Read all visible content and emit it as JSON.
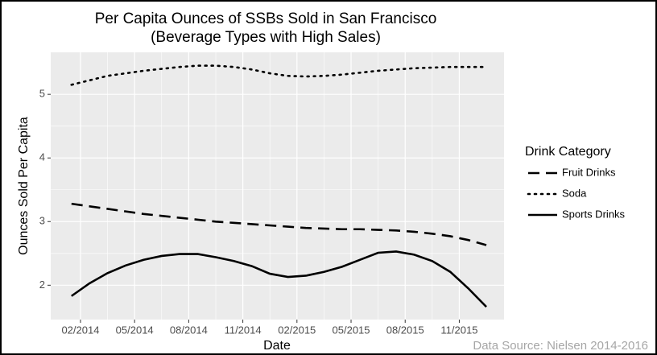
{
  "chart_data": {
    "type": "line",
    "title": "Per Capita Ounces of SSBs Sold in San Francisco",
    "subtitle": "(Beverage Types with High Sales)",
    "x_label": "Date",
    "y_label": "Ounces Sold Per Capita",
    "caption": "Data Source: Nielsen 2014-2016",
    "legend_title": "Drink Category",
    "legend": "right",
    "grid": true,
    "x": [
      1.5,
      2.5,
      3.5,
      4.5,
      5.5,
      6.5,
      7.5,
      8.5,
      9.5,
      10.5,
      11.5,
      12.5,
      13.5,
      14.5,
      15.5,
      16.5,
      17.5,
      18.5,
      19.5,
      20.5,
      21.5,
      22.5,
      23.5,
      24.5
    ],
    "xlim": [
      0.35,
      25.48
    ],
    "xticks": [
      {
        "value": 2,
        "label": "02/2014"
      },
      {
        "value": 5,
        "label": "05/2014"
      },
      {
        "value": 8,
        "label": "08/2014"
      },
      {
        "value": 11,
        "label": "11/2014"
      },
      {
        "value": 14,
        "label": "02/2015"
      },
      {
        "value": 17,
        "label": "05/2015"
      },
      {
        "value": 20,
        "label": "08/2015"
      },
      {
        "value": 23,
        "label": "11/2015"
      }
    ],
    "ylim": [
      1.46,
      5.66
    ],
    "yticks": [
      2,
      3,
      4,
      5
    ],
    "series": [
      {
        "name": "Fruit Drinks",
        "color": "#000000",
        "linetype": "dashed",
        "values": [
          3.28,
          3.24,
          3.2,
          3.16,
          3.12,
          3.09,
          3.06,
          3.03,
          3.0,
          2.98,
          2.96,
          2.94,
          2.92,
          2.9,
          2.89,
          2.88,
          2.88,
          2.87,
          2.86,
          2.84,
          2.81,
          2.77,
          2.71,
          2.63
        ]
      },
      {
        "name": "Soda",
        "color": "#000000",
        "linetype": "dotted",
        "values": [
          5.15,
          5.22,
          5.29,
          5.33,
          5.37,
          5.4,
          5.43,
          5.45,
          5.45,
          5.43,
          5.39,
          5.33,
          5.29,
          5.28,
          5.29,
          5.31,
          5.34,
          5.37,
          5.39,
          5.41,
          5.42,
          5.43,
          5.43,
          5.43
        ]
      },
      {
        "name": "Sports Drinks",
        "color": "#000000",
        "linetype": "solid",
        "values": [
          1.83,
          2.03,
          2.19,
          2.31,
          2.4,
          2.46,
          2.49,
          2.49,
          2.44,
          2.38,
          2.3,
          2.18,
          2.13,
          2.15,
          2.21,
          2.29,
          2.4,
          2.51,
          2.53,
          2.48,
          2.38,
          2.21,
          1.95,
          1.66
        ]
      }
    ]
  }
}
